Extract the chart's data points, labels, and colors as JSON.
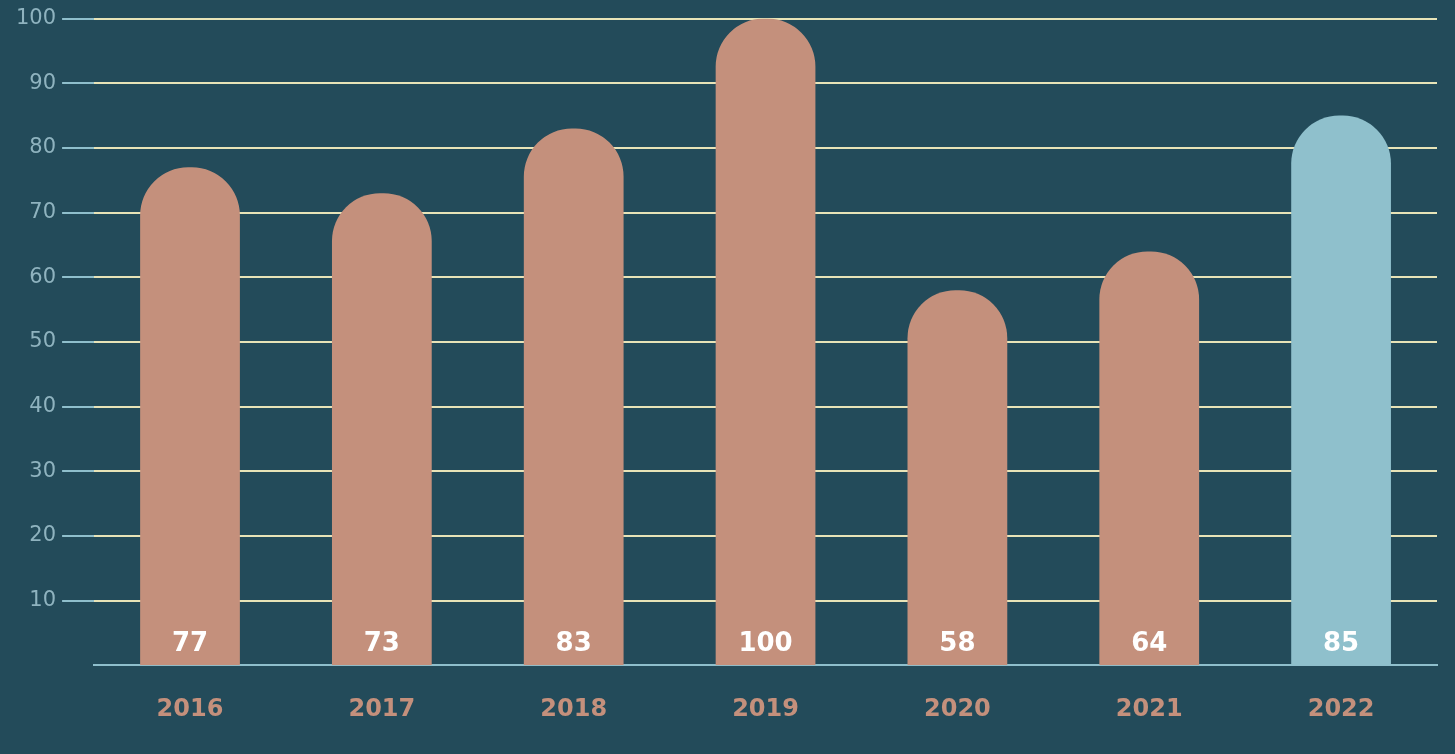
{
  "chart_data": {
    "type": "bar",
    "categories": [
      "2016",
      "2017",
      "2018",
      "2019",
      "2020",
      "2021",
      "2022"
    ],
    "values": [
      77,
      73,
      83,
      100,
      58,
      64,
      85
    ],
    "colors": [
      "#c4907c",
      "#c4907c",
      "#c4907c",
      "#c4907c",
      "#c4907c",
      "#c4907c",
      "#8fc0cc"
    ],
    "ylim": [
      0,
      100
    ],
    "yticks": [
      10,
      20,
      30,
      40,
      50,
      60,
      70,
      80,
      90,
      100
    ],
    "grid": "y",
    "data_labels": true
  }
}
